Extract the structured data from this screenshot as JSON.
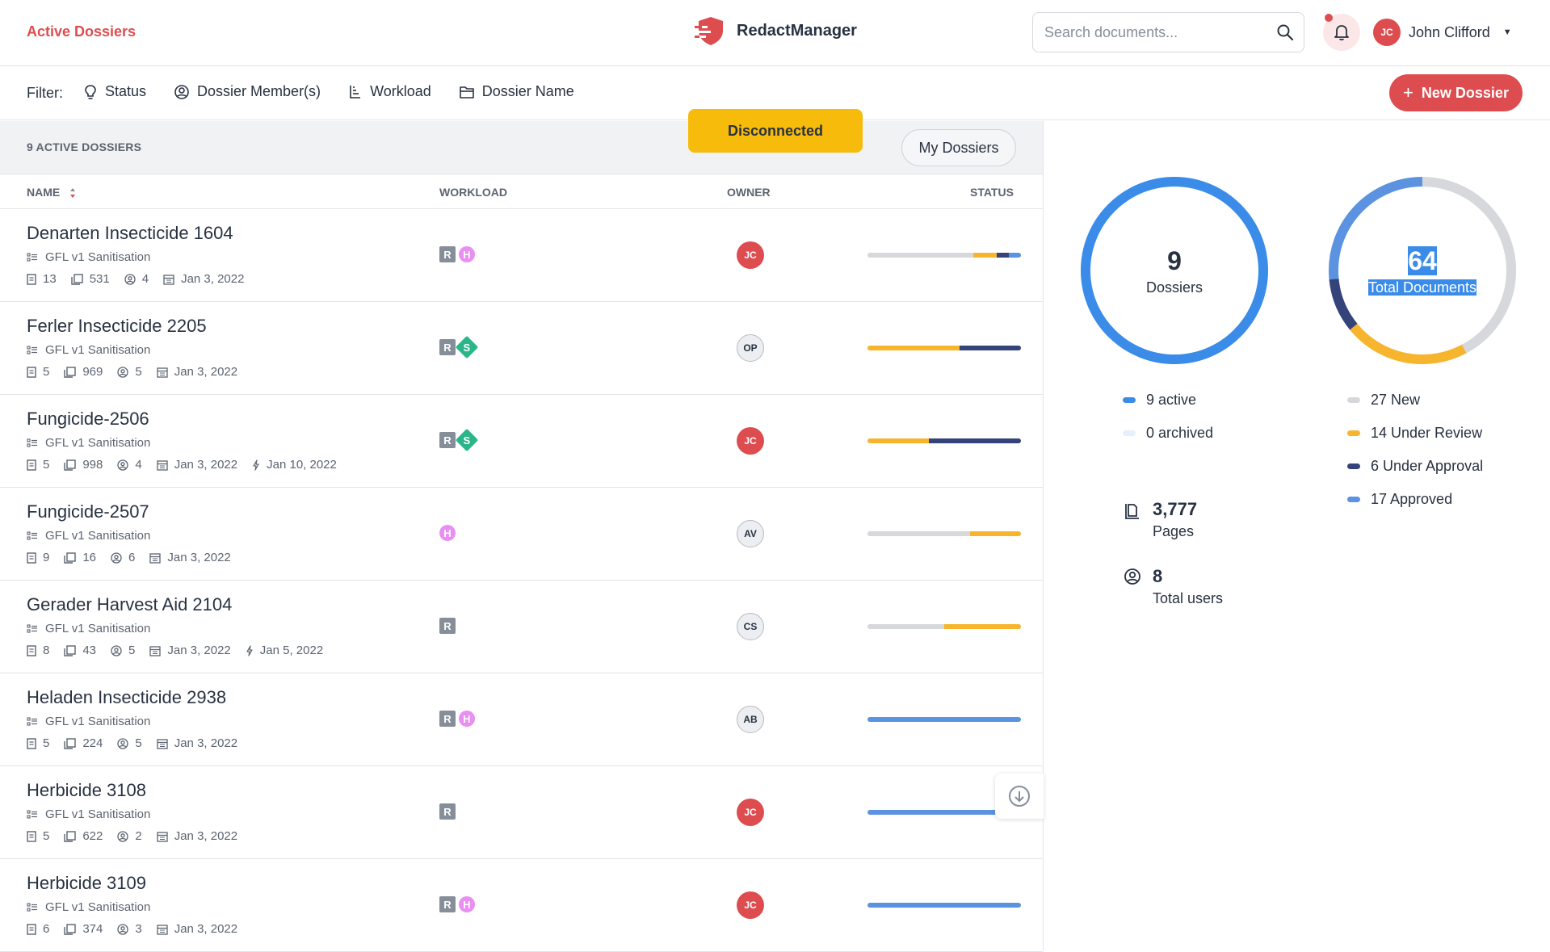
{
  "header": {
    "breadcrumb": "Active Dossiers",
    "brand": "RedactManager",
    "search_placeholder": "Search documents...",
    "user_initials": "JC",
    "user_name": "John Clifford"
  },
  "filters": {
    "label": "Filter:",
    "items": [
      "Status",
      "Dossier Member(s)",
      "Workload",
      "Dossier Name"
    ],
    "new_button": "New Dossier"
  },
  "list": {
    "count": "9 ACTIVE DOSSIERS",
    "my_dossiers": "My Dossiers",
    "toast": "Disconnected",
    "columns": {
      "name": "NAME",
      "workload": "WORKLOAD",
      "owner": "OWNER",
      "status": "STATUS"
    },
    "rows": [
      {
        "name": "Denarten Insecticide 1604",
        "template": "GFL v1 Sanitisation",
        "docs": "13",
        "pages": "531",
        "members": "4",
        "created": "Jan 3, 2022",
        "due": null,
        "badges": [
          "R",
          "H"
        ],
        "owner": "JC",
        "owner_style": "red",
        "status": [
          {
            "c": "#d6d8dc",
            "v": 0.69
          },
          {
            "c": "#f6b52d",
            "v": 0.15
          },
          {
            "c": "#34447a",
            "v": 0.08
          },
          {
            "c": "#5b93e0",
            "v": 0.08
          }
        ]
      },
      {
        "name": "Ferler Insecticide 2205",
        "template": "GFL v1 Sanitisation",
        "docs": "5",
        "pages": "969",
        "members": "5",
        "created": "Jan 3, 2022",
        "due": null,
        "badges": [
          "R",
          "S"
        ],
        "owner": "OP",
        "owner_style": "grey",
        "status": [
          {
            "c": "#f6b52d",
            "v": 0.6
          },
          {
            "c": "#34447a",
            "v": 0.4
          }
        ]
      },
      {
        "name": "Fungicide-2506",
        "template": "GFL v1 Sanitisation",
        "docs": "5",
        "pages": "998",
        "members": "4",
        "created": "Jan 3, 2022",
        "due": "Jan 10, 2022",
        "badges": [
          "R",
          "S"
        ],
        "owner": "JC",
        "owner_style": "red",
        "status": [
          {
            "c": "#f6b52d",
            "v": 0.4
          },
          {
            "c": "#34447a",
            "v": 0.6
          }
        ]
      },
      {
        "name": "Fungicide-2507",
        "template": "GFL v1 Sanitisation",
        "docs": "9",
        "pages": "16",
        "members": "6",
        "created": "Jan 3, 2022",
        "due": null,
        "badges": [
          "H"
        ],
        "owner": "AV",
        "owner_style": "grey",
        "status": [
          {
            "c": "#d6d8dc",
            "v": 0.67
          },
          {
            "c": "#f6b52d",
            "v": 0.33
          }
        ]
      },
      {
        "name": "Gerader Harvest Aid 2104",
        "template": "GFL v1 Sanitisation",
        "docs": "8",
        "pages": "43",
        "members": "5",
        "created": "Jan 3, 2022",
        "due": "Jan 5, 2022",
        "badges": [
          "R"
        ],
        "owner": "CS",
        "owner_style": "grey",
        "status": [
          {
            "c": "#d6d8dc",
            "v": 0.5
          },
          {
            "c": "#f6b52d",
            "v": 0.5
          }
        ]
      },
      {
        "name": "Heladen Insecticide 2938",
        "template": "GFL v1 Sanitisation",
        "docs": "5",
        "pages": "224",
        "members": "5",
        "created": "Jan 3, 2022",
        "due": null,
        "badges": [
          "R",
          "H"
        ],
        "owner": "AB",
        "owner_style": "grey",
        "status": [
          {
            "c": "#5b93e0",
            "v": 1
          }
        ]
      },
      {
        "name": "Herbicide 3108",
        "template": "GFL v1 Sanitisation",
        "docs": "5",
        "pages": "622",
        "members": "2",
        "created": "Jan 3, 2022",
        "due": null,
        "badges": [
          "R"
        ],
        "owner": "JC",
        "owner_style": "red",
        "status": [
          {
            "c": "#5b93e0",
            "v": 1
          }
        ]
      },
      {
        "name": "Herbicide 3109",
        "template": "GFL v1 Sanitisation",
        "docs": "6",
        "pages": "374",
        "members": "3",
        "created": "Jan 3, 2022",
        "due": null,
        "badges": [
          "R",
          "H"
        ],
        "owner": "JC",
        "owner_style": "red",
        "status": [
          {
            "c": "#5b93e0",
            "v": 1
          }
        ]
      }
    ]
  },
  "stats": {
    "dossiers": {
      "value": "9",
      "label": "Dossiers",
      "active": "9 active",
      "archived": "0 archived",
      "active_count": 9,
      "archived_count": 0,
      "active_color": "#3a8ce8",
      "archived_color": "#e6f0fc"
    },
    "documents": {
      "value": "64",
      "label": "Total Documents",
      "segments": [
        {
          "label": "27 New",
          "count": 27,
          "color": "#d6d8dc"
        },
        {
          "label": "14 Under Review",
          "count": 14,
          "color": "#f6b52d"
        },
        {
          "label": "6 Under Approval",
          "count": 6,
          "color": "#34447a"
        },
        {
          "label": "17 Approved",
          "count": 17,
          "color": "#5b93e0"
        }
      ]
    },
    "pages": {
      "value": "3,777",
      "label": "Pages"
    },
    "users": {
      "value": "8",
      "label": "Total users"
    }
  }
}
